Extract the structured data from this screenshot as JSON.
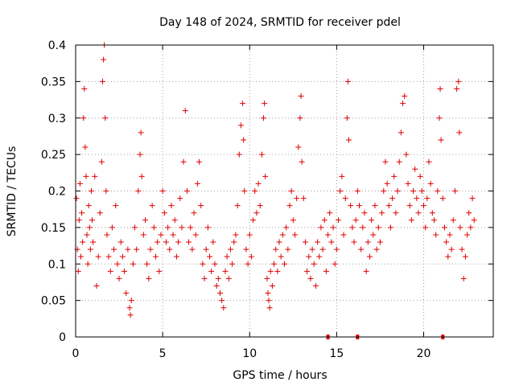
{
  "chart_data": {
    "type": "scatter",
    "title": "Day 148 of 2024, SRMTID for receiver pdel",
    "xlabel": "GPS time / hours",
    "ylabel": "SRMTID / TECUs",
    "xlim": [
      0,
      24
    ],
    "ylim": [
      0,
      0.4
    ],
    "x_ticks": [
      0,
      5,
      10,
      15,
      20
    ],
    "x_tick_labels": [
      "0",
      "5",
      "10",
      "15",
      "20"
    ],
    "y_ticks": [
      0,
      0.05,
      0.1,
      0.15,
      0.2,
      0.25,
      0.3,
      0.35,
      0.4
    ],
    "y_tick_labels": [
      "0",
      "0.05",
      "0.1",
      "0.15",
      "0.2",
      "0.25",
      "0.3",
      "0.35",
      "0.4"
    ],
    "grid": true,
    "marker": "plus",
    "color": "#e00000",
    "series": [
      {
        "name": "SRMTID",
        "points": [
          [
            0.05,
            0.19
          ],
          [
            0.1,
            0.12
          ],
          [
            0.15,
            0.09
          ],
          [
            0.2,
            0.16
          ],
          [
            0.25,
            0.21
          ],
          [
            0.3,
            0.11
          ],
          [
            0.35,
            0.17
          ],
          [
            0.4,
            0.13
          ],
          [
            0.45,
            0.3
          ],
          [
            0.5,
            0.34
          ],
          [
            0.55,
            0.26
          ],
          [
            0.6,
            0.22
          ],
          [
            0.65,
            0.14
          ],
          [
            0.7,
            0.1
          ],
          [
            0.75,
            0.18
          ],
          [
            0.8,
            0.15
          ],
          [
            0.85,
            0.12
          ],
          [
            0.9,
            0.2
          ],
          [
            0.95,
            0.16
          ],
          [
            1.0,
            0.13
          ],
          [
            1.1,
            0.22
          ],
          [
            1.2,
            0.07
          ],
          [
            1.3,
            0.11
          ],
          [
            1.4,
            0.17
          ],
          [
            1.5,
            0.24
          ],
          [
            1.55,
            0.35
          ],
          [
            1.6,
            0.38
          ],
          [
            1.65,
            0.4
          ],
          [
            1.7,
            0.3
          ],
          [
            1.75,
            0.2
          ],
          [
            1.8,
            0.14
          ],
          [
            1.9,
            0.11
          ],
          [
            2.0,
            0.09
          ],
          [
            2.1,
            0.15
          ],
          [
            2.2,
            0.12
          ],
          [
            2.3,
            0.18
          ],
          [
            2.4,
            0.1
          ],
          [
            2.5,
            0.08
          ],
          [
            2.6,
            0.13
          ],
          [
            2.7,
            0.11
          ],
          [
            2.8,
            0.09
          ],
          [
            2.9,
            0.06
          ],
          [
            3.0,
            0.12
          ],
          [
            3.1,
            0.04
          ],
          [
            3.15,
            0.03
          ],
          [
            3.2,
            0.05
          ],
          [
            3.3,
            0.1
          ],
          [
            3.4,
            0.15
          ],
          [
            3.5,
            0.12
          ],
          [
            3.6,
            0.2
          ],
          [
            3.7,
            0.25
          ],
          [
            3.75,
            0.28
          ],
          [
            3.8,
            0.22
          ],
          [
            3.9,
            0.14
          ],
          [
            4.0,
            0.16
          ],
          [
            4.1,
            0.1
          ],
          [
            4.2,
            0.08
          ],
          [
            4.3,
            0.12
          ],
          [
            4.4,
            0.18
          ],
          [
            4.5,
            0.15
          ],
          [
            4.6,
            0.11
          ],
          [
            4.7,
            0.13
          ],
          [
            4.8,
            0.09
          ],
          [
            4.9,
            0.14
          ],
          [
            5.0,
            0.2
          ],
          [
            5.1,
            0.17
          ],
          [
            5.2,
            0.13
          ],
          [
            5.3,
            0.15
          ],
          [
            5.4,
            0.12
          ],
          [
            5.5,
            0.18
          ],
          [
            5.6,
            0.14
          ],
          [
            5.7,
            0.16
          ],
          [
            5.8,
            0.11
          ],
          [
            5.9,
            0.13
          ],
          [
            6.0,
            0.19
          ],
          [
            6.1,
            0.15
          ],
          [
            6.2,
            0.24
          ],
          [
            6.3,
            0.31
          ],
          [
            6.4,
            0.2
          ],
          [
            6.5,
            0.13
          ],
          [
            6.6,
            0.15
          ],
          [
            6.7,
            0.12
          ],
          [
            6.8,
            0.17
          ],
          [
            6.9,
            0.14
          ],
          [
            7.0,
            0.21
          ],
          [
            7.1,
            0.24
          ],
          [
            7.2,
            0.18
          ],
          [
            7.3,
            0.1
          ],
          [
            7.4,
            0.08
          ],
          [
            7.5,
            0.12
          ],
          [
            7.6,
            0.15
          ],
          [
            7.7,
            0.11
          ],
          [
            7.8,
            0.09
          ],
          [
            7.9,
            0.13
          ],
          [
            8.0,
            0.1
          ],
          [
            8.1,
            0.07
          ],
          [
            8.2,
            0.08
          ],
          [
            8.3,
            0.06
          ],
          [
            8.4,
            0.05
          ],
          [
            8.5,
            0.04
          ],
          [
            8.6,
            0.09
          ],
          [
            8.7,
            0.11
          ],
          [
            8.8,
            0.08
          ],
          [
            8.9,
            0.12
          ],
          [
            9.0,
            0.1
          ],
          [
            9.1,
            0.13
          ],
          [
            9.2,
            0.14
          ],
          [
            9.3,
            0.18
          ],
          [
            9.4,
            0.25
          ],
          [
            9.5,
            0.29
          ],
          [
            9.6,
            0.32
          ],
          [
            9.65,
            0.27
          ],
          [
            9.7,
            0.2
          ],
          [
            9.8,
            0.12
          ],
          [
            9.9,
            0.1
          ],
          [
            10.0,
            0.14
          ],
          [
            10.1,
            0.11
          ],
          [
            10.2,
            0.16
          ],
          [
            10.3,
            0.2
          ],
          [
            10.4,
            0.17
          ],
          [
            10.5,
            0.21
          ],
          [
            10.6,
            0.18
          ],
          [
            10.7,
            0.25
          ],
          [
            10.8,
            0.3
          ],
          [
            10.85,
            0.32
          ],
          [
            10.9,
            0.22
          ],
          [
            11.0,
            0.08
          ],
          [
            11.05,
            0.06
          ],
          [
            11.1,
            0.05
          ],
          [
            11.15,
            0.04
          ],
          [
            11.2,
            0.09
          ],
          [
            11.3,
            0.07
          ],
          [
            11.4,
            0.1
          ],
          [
            11.5,
            0.12
          ],
          [
            11.6,
            0.09
          ],
          [
            11.7,
            0.13
          ],
          [
            11.8,
            0.11
          ],
          [
            11.9,
            0.14
          ],
          [
            12.0,
            0.1
          ],
          [
            12.1,
            0.15
          ],
          [
            12.2,
            0.12
          ],
          [
            12.3,
            0.18
          ],
          [
            12.4,
            0.2
          ],
          [
            12.5,
            0.16
          ],
          [
            12.6,
            0.14
          ],
          [
            12.7,
            0.19
          ],
          [
            12.8,
            0.26
          ],
          [
            12.9,
            0.3
          ],
          [
            12.95,
            0.33
          ],
          [
            13.0,
            0.24
          ],
          [
            13.1,
            0.19
          ],
          [
            13.2,
            0.13
          ],
          [
            13.3,
            0.09
          ],
          [
            13.4,
            0.11
          ],
          [
            13.5,
            0.08
          ],
          [
            13.6,
            0.12
          ],
          [
            13.7,
            0.1
          ],
          [
            13.8,
            0.07
          ],
          [
            13.9,
            0.13
          ],
          [
            14.0,
            0.11
          ],
          [
            14.1,
            0.15
          ],
          [
            14.2,
            0.12
          ],
          [
            14.3,
            0.16
          ],
          [
            14.4,
            0.09
          ],
          [
            14.5,
            0.14
          ],
          [
            14.6,
            0.17
          ],
          [
            14.7,
            0.13
          ],
          [
            14.8,
            0.15
          ],
          [
            14.9,
            0.1
          ],
          [
            15.0,
            0.12
          ],
          [
            15.1,
            0.16
          ],
          [
            15.2,
            0.2
          ],
          [
            15.3,
            0.22
          ],
          [
            15.4,
            0.14
          ],
          [
            15.5,
            0.19
          ],
          [
            15.6,
            0.3
          ],
          [
            15.65,
            0.35
          ],
          [
            15.7,
            0.27
          ],
          [
            15.8,
            0.18
          ],
          [
            15.9,
            0.15
          ],
          [
            16.0,
            0.13
          ],
          [
            16.1,
            0.16
          ],
          [
            16.2,
            0.2
          ],
          [
            16.3,
            0.18
          ],
          [
            16.4,
            0.12
          ],
          [
            16.5,
            0.15
          ],
          [
            16.6,
            0.17
          ],
          [
            16.7,
            0.09
          ],
          [
            16.8,
            0.13
          ],
          [
            16.9,
            0.11
          ],
          [
            17.0,
            0.16
          ],
          [
            17.1,
            0.14
          ],
          [
            17.2,
            0.18
          ],
          [
            17.3,
            0.12
          ],
          [
            17.4,
            0.15
          ],
          [
            17.5,
            0.13
          ],
          [
            17.6,
            0.17
          ],
          [
            17.7,
            0.2
          ],
          [
            17.8,
            0.24
          ],
          [
            17.9,
            0.21
          ],
          [
            18.0,
            0.18
          ],
          [
            18.1,
            0.15
          ],
          [
            18.2,
            0.19
          ],
          [
            18.3,
            0.22
          ],
          [
            18.4,
            0.17
          ],
          [
            18.5,
            0.2
          ],
          [
            18.6,
            0.24
          ],
          [
            18.7,
            0.28
          ],
          [
            18.8,
            0.32
          ],
          [
            18.9,
            0.33
          ],
          [
            19.0,
            0.25
          ],
          [
            19.1,
            0.21
          ],
          [
            19.2,
            0.18
          ],
          [
            19.3,
            0.16
          ],
          [
            19.4,
            0.2
          ],
          [
            19.5,
            0.23
          ],
          [
            19.6,
            0.19
          ],
          [
            19.7,
            0.17
          ],
          [
            19.8,
            0.22
          ],
          [
            19.9,
            0.2
          ],
          [
            20.0,
            0.18
          ],
          [
            20.1,
            0.15
          ],
          [
            20.2,
            0.19
          ],
          [
            20.3,
            0.24
          ],
          [
            20.4,
            0.21
          ],
          [
            20.5,
            0.17
          ],
          [
            20.6,
            0.16
          ],
          [
            20.7,
            0.14
          ],
          [
            20.8,
            0.2
          ],
          [
            20.9,
            0.3
          ],
          [
            20.95,
            0.34
          ],
          [
            21.0,
            0.27
          ],
          [
            21.1,
            0.19
          ],
          [
            21.2,
            0.15
          ],
          [
            21.3,
            0.13
          ],
          [
            21.4,
            0.11
          ],
          [
            21.5,
            0.14
          ],
          [
            21.6,
            0.12
          ],
          [
            21.7,
            0.16
          ],
          [
            21.8,
            0.2
          ],
          [
            21.9,
            0.34
          ],
          [
            22.0,
            0.35
          ],
          [
            22.05,
            0.28
          ],
          [
            22.1,
            0.15
          ],
          [
            22.2,
            0.12
          ],
          [
            22.3,
            0.08
          ],
          [
            22.4,
            0.11
          ],
          [
            22.5,
            0.14
          ],
          [
            22.6,
            0.17
          ],
          [
            22.7,
            0.15
          ],
          [
            22.8,
            0.19
          ],
          [
            22.9,
            0.16
          ]
        ]
      }
    ],
    "bottom_markers_x": [
      14.5,
      16.2,
      21.1
    ]
  }
}
